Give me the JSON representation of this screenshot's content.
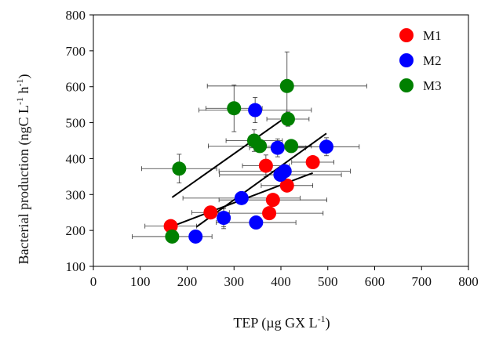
{
  "chart_data": {
    "type": "scatter",
    "title": "",
    "xlabel_main": "TEP (µg GX L",
    "xlabel_sup": "-1",
    "xlabel_close": ")",
    "ylabel_main": "Bacterial production (ngC L",
    "ylabel_sup1": "-1",
    "ylabel_mid": " h",
    "ylabel_sup2": "-1",
    "ylabel_close": ")",
    "xlim": [
      0,
      800
    ],
    "ylim": [
      100,
      800
    ],
    "xticks": [
      "0",
      "100",
      "200",
      "300",
      "400",
      "500",
      "600",
      "700",
      "800"
    ],
    "yticks": [
      "100",
      "200",
      "300",
      "400",
      "500",
      "600",
      "700",
      "800"
    ],
    "legend_position": "top-right",
    "grid": false,
    "series": [
      {
        "name": "M1",
        "color": "#ff0000",
        "points": [
          {
            "x": 165,
            "y": 212,
            "xerr": 55,
            "yerr": 0
          },
          {
            "x": 250,
            "y": 250,
            "xerr": 40,
            "yerr": 0
          },
          {
            "x": 368,
            "y": 380,
            "xerr": 50,
            "yerr": 30
          },
          {
            "x": 375,
            "y": 248,
            "xerr": 115,
            "yerr": 0
          },
          {
            "x": 383,
            "y": 285,
            "xerr": 115,
            "yerr": 0
          },
          {
            "x": 413,
            "y": 325,
            "xerr": 55,
            "yerr": 0
          },
          {
            "x": 468,
            "y": 390,
            "xerr": 45,
            "yerr": 0
          }
        ],
        "fit": {
          "x1": 165,
          "y1": 210,
          "x2": 468,
          "y2": 360
        }
      },
      {
        "name": "M2",
        "color": "#0000ff",
        "points": [
          {
            "x": 218,
            "y": 183,
            "xerr": 0,
            "yerr": 0
          },
          {
            "x": 278,
            "y": 235,
            "xerr": 0,
            "yerr": 30
          },
          {
            "x": 316,
            "y": 290,
            "xerr": 0,
            "yerr": 0
          },
          {
            "x": 345,
            "y": 535,
            "xerr": 0,
            "yerr": 35
          },
          {
            "x": 347,
            "y": 222,
            "xerr": 0,
            "yerr": 0
          },
          {
            "x": 393,
            "y": 430,
            "xerr": 0,
            "yerr": 0
          },
          {
            "x": 399,
            "y": 355,
            "xerr": 0,
            "yerr": 0
          },
          {
            "x": 408,
            "y": 365,
            "xerr": 0,
            "yerr": 0
          },
          {
            "x": 497,
            "y": 433,
            "xerr": 0,
            "yerr": 0
          }
        ],
        "fit": {
          "x1": 220,
          "y1": 210,
          "x2": 497,
          "y2": 470
        }
      },
      {
        "name": "M3",
        "color": "#008000",
        "points": [
          {
            "x": 168,
            "y": 183,
            "xerr": 0,
            "yerr": 0
          },
          {
            "x": 183,
            "y": 372,
            "xerr": 0,
            "yerr": 0
          },
          {
            "x": 300,
            "y": 540,
            "xerr": 60,
            "yerr": 65
          },
          {
            "x": 343,
            "y": 450,
            "xerr": 0,
            "yerr": 0
          },
          {
            "x": 355,
            "y": 435,
            "xerr": 0,
            "yerr": 0
          },
          {
            "x": 413,
            "y": 602,
            "xerr": 170,
            "yerr": 95
          },
          {
            "x": 415,
            "y": 510,
            "xerr": 0,
            "yerr": 0
          },
          {
            "x": 422,
            "y": 435,
            "xerr": 0,
            "yerr": 0
          }
        ],
        "fit": {
          "x1": 168,
          "y1": 292,
          "x2": 418,
          "y2": 522
        }
      }
    ],
    "background_error_bars": [
      {
        "x": 168,
        "y": 183,
        "xerr": 85,
        "yerr": 0
      },
      {
        "x": 218,
        "y": 183,
        "xerr": 0,
        "yerr": 0
      },
      {
        "x": 183,
        "y": 372,
        "xerr": 80,
        "yerr": 40
      },
      {
        "x": 278,
        "y": 235,
        "xerr": 0,
        "yerr": 25
      },
      {
        "x": 316,
        "y": 290,
        "xerr": 125,
        "yerr": 0
      },
      {
        "x": 347,
        "y": 222,
        "xerr": 85,
        "yerr": 0
      },
      {
        "x": 345,
        "y": 535,
        "xerr": 120,
        "yerr": 0
      },
      {
        "x": 343,
        "y": 450,
        "xerr": 60,
        "yerr": 30
      },
      {
        "x": 355,
        "y": 435,
        "xerr": 110,
        "yerr": 0
      },
      {
        "x": 393,
        "y": 430,
        "xerr": 60,
        "yerr": 25
      },
      {
        "x": 399,
        "y": 355,
        "xerr": 130,
        "yerr": 0
      },
      {
        "x": 408,
        "y": 365,
        "xerr": 140,
        "yerr": 0
      },
      {
        "x": 415,
        "y": 510,
        "xerr": 45,
        "yerr": 20
      },
      {
        "x": 422,
        "y": 435,
        "xerr": 0,
        "yerr": 0
      },
      {
        "x": 497,
        "y": 433,
        "xerr": 70,
        "yerr": 25
      },
      {
        "x": 368,
        "y": 380,
        "xerr": 0,
        "yerr": 0
      }
    ]
  }
}
